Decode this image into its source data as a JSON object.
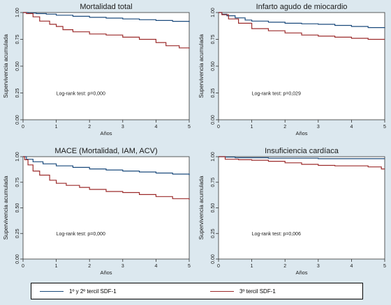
{
  "colors": {
    "background": "#dce8ef",
    "plot_background": "#ffffff",
    "series_1": "#1a4a7c",
    "series_2": "#9c2b2b"
  },
  "legend": {
    "items": [
      "1º y 2º tercil SDF-1",
      "3º tercil SDF-1"
    ],
    "placement": "bottom"
  },
  "chart_data": [
    {
      "type": "line",
      "title": "Mortalidad total",
      "xlabel": "Años",
      "ylabel": "Supervivencia acumulada",
      "xlim": [
        0,
        5
      ],
      "ylim": [
        0,
        1
      ],
      "xticks": [
        0,
        1,
        2,
        3,
        4,
        5
      ],
      "yticks": [
        0,
        0.25,
        0.5,
        0.75,
        1
      ],
      "ytick_labels": [
        "0.00",
        "0.25",
        "0.50",
        "0.75",
        "1.00"
      ],
      "grid": false,
      "annotation": "Log-rank test: p=0,000",
      "series": [
        {
          "name": "1º y 2º tercil SDF-1",
          "x": [
            0,
            0.15,
            0.4,
            0.7,
            1.0,
            1.5,
            2.0,
            2.5,
            3.0,
            3.5,
            4.0,
            4.5,
            5.0
          ],
          "y": [
            1.0,
            0.995,
            0.99,
            0.985,
            0.975,
            0.965,
            0.955,
            0.948,
            0.94,
            0.933,
            0.926,
            0.918,
            0.912
          ]
        },
        {
          "name": "3º tercil SDF-1",
          "x": [
            0,
            0.1,
            0.3,
            0.5,
            0.8,
            1.0,
            1.2,
            1.5,
            2.0,
            2.5,
            3.0,
            3.5,
            4.0,
            4.3,
            4.7,
            5.0
          ],
          "y": [
            1.0,
            0.99,
            0.96,
            0.92,
            0.89,
            0.87,
            0.84,
            0.82,
            0.8,
            0.79,
            0.77,
            0.75,
            0.72,
            0.69,
            0.67,
            0.665
          ]
        }
      ]
    },
    {
      "type": "line",
      "title": "Infarto agudo de miocardio",
      "xlabel": "Años",
      "ylabel": "Supervivencia acumulada",
      "xlim": [
        0,
        5
      ],
      "ylim": [
        0,
        1
      ],
      "xticks": [
        0,
        1,
        2,
        3,
        4,
        5
      ],
      "yticks": [
        0,
        0.25,
        0.5,
        0.75,
        1
      ],
      "ytick_labels": [
        "0.00",
        "0.25",
        "0.50",
        "0.75",
        "1.00"
      ],
      "grid": false,
      "annotation": "Log-rank test: p=0,029",
      "series": [
        {
          "name": "1º y 2º tercil SDF-1",
          "x": [
            0,
            0.1,
            0.25,
            0.5,
            0.8,
            1.0,
            1.5,
            2.0,
            2.5,
            3.0,
            3.5,
            4.0,
            4.5,
            5.0
          ],
          "y": [
            1.0,
            0.985,
            0.97,
            0.95,
            0.93,
            0.92,
            0.91,
            0.9,
            0.895,
            0.89,
            0.88,
            0.87,
            0.86,
            0.855
          ]
        },
        {
          "name": "3º tercil SDF-1",
          "x": [
            0,
            0.1,
            0.3,
            0.6,
            1.0,
            1.5,
            2.0,
            2.5,
            3.0,
            3.5,
            4.0,
            4.5,
            5.0
          ],
          "y": [
            1.0,
            0.98,
            0.94,
            0.9,
            0.85,
            0.83,
            0.81,
            0.79,
            0.78,
            0.77,
            0.76,
            0.75,
            0.75
          ]
        }
      ]
    },
    {
      "type": "line",
      "title": "MACE (Mortalidad, IAM, ACV)",
      "xlabel": "Años",
      "ylabel": "Supervivencia acumulada",
      "xlim": [
        0,
        5
      ],
      "ylim": [
        0,
        1
      ],
      "xticks": [
        0,
        1,
        2,
        3,
        4,
        5
      ],
      "yticks": [
        0,
        0.25,
        0.5,
        0.75,
        1
      ],
      "ytick_labels": [
        "0.00",
        "0.25",
        "0.50",
        "0.75",
        "1.00"
      ],
      "grid": false,
      "annotation": "Log-rank test: p=0,000",
      "series": [
        {
          "name": "1º y 2º tercil SDF-1",
          "x": [
            0,
            0.1,
            0.3,
            0.6,
            1.0,
            1.5,
            2.0,
            2.5,
            3.0,
            3.5,
            4.0,
            4.5,
            5.0
          ],
          "y": [
            1.0,
            0.975,
            0.95,
            0.93,
            0.91,
            0.895,
            0.88,
            0.87,
            0.86,
            0.85,
            0.84,
            0.83,
            0.82
          ]
        },
        {
          "name": "3º tercil SDF-1",
          "x": [
            0,
            0.05,
            0.15,
            0.3,
            0.5,
            0.8,
            1.0,
            1.3,
            1.7,
            2.0,
            2.5,
            3.0,
            3.5,
            4.0,
            4.5,
            5.0
          ],
          "y": [
            1.0,
            0.97,
            0.92,
            0.86,
            0.82,
            0.77,
            0.74,
            0.72,
            0.7,
            0.68,
            0.66,
            0.65,
            0.63,
            0.61,
            0.59,
            0.58
          ]
        }
      ]
    },
    {
      "type": "line",
      "title": "Insuficiencia cardíaca",
      "xlabel": "Años",
      "ylabel": "Supervivencia acumulada",
      "xlim": [
        0,
        5
      ],
      "ylim": [
        0,
        1
      ],
      "xticks": [
        0,
        1,
        2,
        3,
        4,
        5
      ],
      "yticks": [
        0,
        0.25,
        0.5,
        0.75,
        1
      ],
      "ytick_labels": [
        "0.00",
        "0.25",
        "0.50",
        "0.75",
        "1.00"
      ],
      "grid": false,
      "annotation": "Log-rank test: p=0,006",
      "series": [
        {
          "name": "1º y 2º tercil SDF-1",
          "x": [
            0,
            0.2,
            0.5,
            1.0,
            1.5,
            2.0,
            2.5,
            3.0,
            3.5,
            4.0,
            4.5,
            5.0
          ],
          "y": [
            1.0,
            0.995,
            0.99,
            0.99,
            0.985,
            0.985,
            0.985,
            0.98,
            0.98,
            0.98,
            0.98,
            0.98
          ]
        },
        {
          "name": "3º tercil SDF-1",
          "x": [
            0,
            0.2,
            0.6,
            1.0,
            1.5,
            2.0,
            2.5,
            3.0,
            3.5,
            4.0,
            4.5,
            4.9,
            5.0
          ],
          "y": [
            1.0,
            0.975,
            0.97,
            0.965,
            0.955,
            0.94,
            0.925,
            0.915,
            0.91,
            0.91,
            0.9,
            0.88,
            0.88
          ]
        }
      ]
    }
  ]
}
